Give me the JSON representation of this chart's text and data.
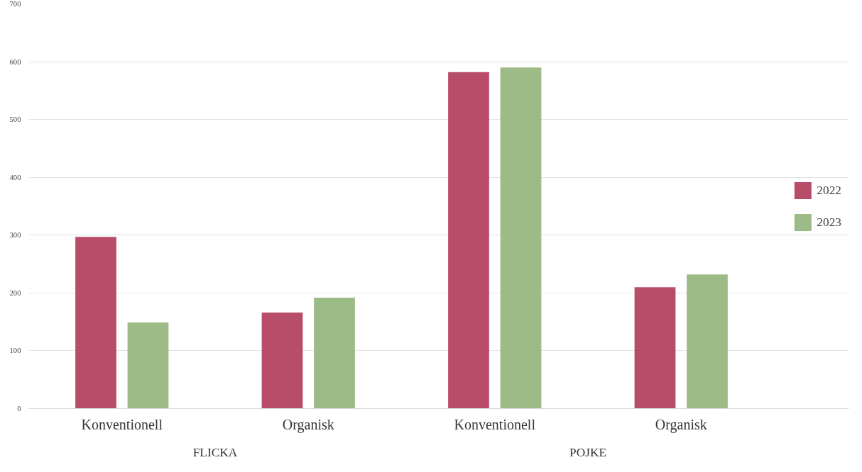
{
  "chart_data": {
    "type": "bar",
    "categories": [
      "Konventionell",
      "Organisk",
      "Konventionell",
      "Organisk"
    ],
    "series": [
      {
        "name": "2022",
        "color": "#b84d69",
        "values": [
          297,
          166,
          582,
          210
        ]
      },
      {
        "name": "2023",
        "color": "#9dbb87",
        "values": [
          149,
          192,
          590,
          232
        ]
      }
    ],
    "ylim": [
      0,
      700
    ],
    "yticks": [
      0,
      100,
      200,
      300,
      400,
      500,
      600,
      700
    ],
    "grid": "y",
    "legend": "right",
    "annotations": [
      "FLICKA",
      "POJKE"
    ]
  }
}
